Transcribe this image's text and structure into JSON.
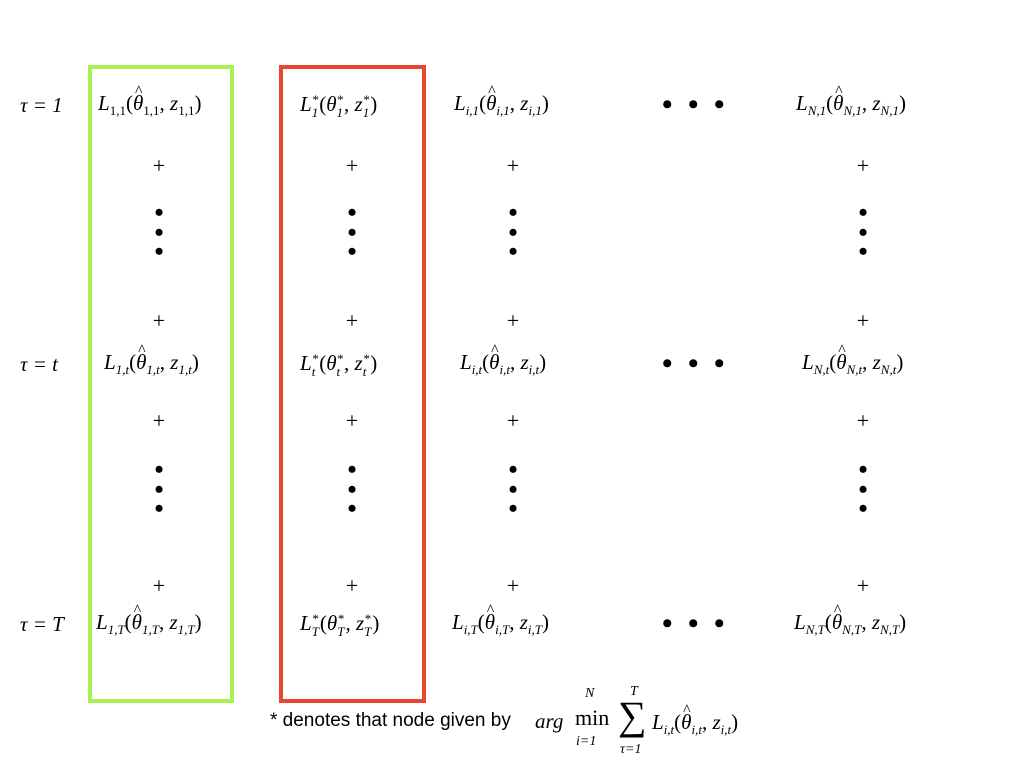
{
  "rows": {
    "r1": {
      "tau_label": "τ = 1",
      "col1": {
        "L": "L",
        "sub": "1,1",
        "theta": "θ",
        "theta_sub": "1,1",
        "z": "z",
        "z_sub": "1,1"
      },
      "col2": {
        "L": "L",
        "sup": "*",
        "sub": "1",
        "theta": "θ",
        "theta_sup": "*",
        "theta_sub": "1",
        "z": "z",
        "z_sup": "*",
        "z_sub": "1"
      },
      "col3": {
        "L": "L",
        "sub": "i,1",
        "theta": "θ",
        "theta_sub": "i,1",
        "z": "z",
        "z_sub": "i,1"
      },
      "col4": {
        "L": "L",
        "sub": "N,1",
        "theta": "θ",
        "theta_sub": "N,1",
        "z": "z",
        "z_sub": "N,1"
      }
    },
    "rt": {
      "tau_label": "τ = t",
      "col1": {
        "L": "L",
        "sub": "1,t",
        "theta": "θ",
        "theta_sub": "1,t",
        "z": "z",
        "z_sub": "1,t"
      },
      "col2": {
        "L": "L",
        "sup": "*",
        "sub": "t",
        "theta": "θ",
        "theta_sup": "*",
        "theta_sub": "t",
        "z": "z",
        "z_sup": "*",
        "z_sub": "t"
      },
      "col3": {
        "L": "L",
        "sub": "i,t",
        "theta": "θ",
        "theta_sub": "i,t",
        "z": "z",
        "z_sub": "i,t"
      },
      "col4": {
        "L": "L",
        "sub": "N,t",
        "theta": "θ",
        "theta_sub": "N,t",
        "z": "z",
        "z_sub": "N,t"
      }
    },
    "rT": {
      "tau_label": "τ = T",
      "col1": {
        "L": "L",
        "sub": "1,T",
        "theta": "θ",
        "theta_sub": "1,T",
        "z": "z",
        "z_sub": "1,T"
      },
      "col2": {
        "L": "L",
        "sup": "*",
        "sub": "T",
        "theta": "θ",
        "theta_sup": "*",
        "theta_sub": "T",
        "z": "z",
        "z_sup": "*",
        "z_sub": "T"
      },
      "col3": {
        "L": "L",
        "sub": "i,T",
        "theta": "θ",
        "theta_sub": "i,T",
        "z": "z",
        "z_sub": "i,T"
      },
      "col4": {
        "L": "L",
        "sub": "N,T",
        "theta": "θ",
        "theta_sub": "N,T",
        "z": "z",
        "z_sub": "N,T"
      }
    }
  },
  "symbols": {
    "plus": "+",
    "vdots": "•\n•\n•",
    "hdots": "• • •"
  },
  "colors": {
    "green_box": "#a8f050",
    "red_box": "#e4492f"
  },
  "footnote": {
    "text": "* denotes that node given by",
    "arg": "arg",
    "min": "min",
    "min_upper": "N",
    "min_lower": "i=1",
    "sum": "∑",
    "sum_upper": "T",
    "sum_lower": "τ=1",
    "expr": {
      "L": "L",
      "sub": "i,t",
      "theta": "θ",
      "theta_sub": "i,t",
      "z": "z",
      "z_sub": "i,t"
    }
  }
}
